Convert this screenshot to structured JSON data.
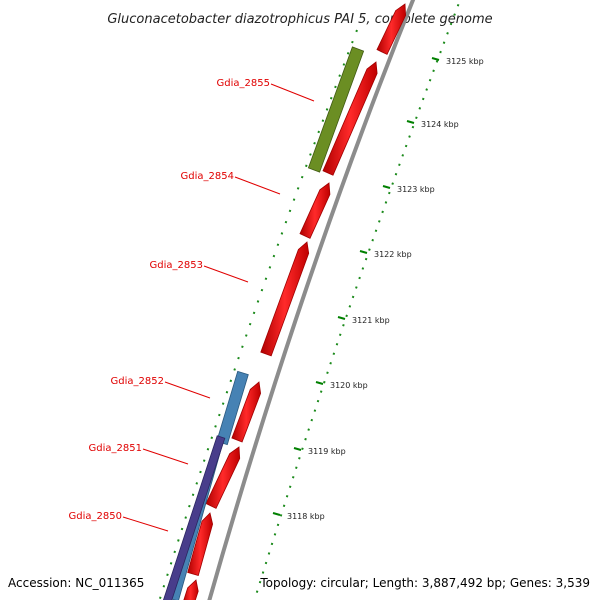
{
  "title": "Gluconacetobacter diazotrophicus PAI 5, complete genome",
  "footer": {
    "accession": "Accession: NC_011365",
    "summary": "Topology: circular; Length: 3,887,492 bp; Genes: 3,539"
  },
  "genes": [
    {
      "name": "Gdia_2855"
    },
    {
      "name": "Gdia_2854"
    },
    {
      "name": "Gdia_2853"
    },
    {
      "name": "Gdia_2852"
    },
    {
      "name": "Gdia_2851"
    },
    {
      "name": "Gdia_2850"
    }
  ],
  "scale": {
    "unit": "kbp",
    "ticks": [
      "3118 kbp",
      "3119 kbp",
      "3120 kbp",
      "3121 kbp",
      "3122 kbp",
      "3123 kbp",
      "3124 kbp",
      "3125 kbp"
    ]
  },
  "colors": {
    "cds": "#ff1a1a",
    "backbone": "#8c8c8c",
    "olive_feature": "#6b8e23",
    "blue_feature": "#4682b4",
    "purple_feature": "#483d8b",
    "tick": "#008000",
    "label": "#e00000"
  }
}
